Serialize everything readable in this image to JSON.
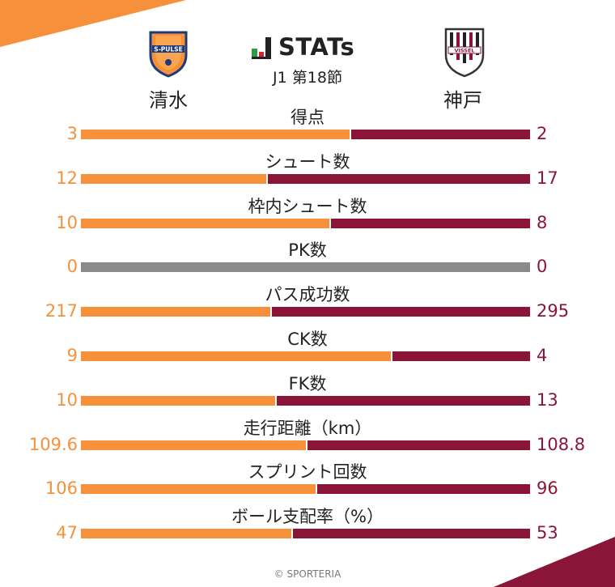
{
  "header": {
    "brand": "STATs",
    "round": "J1 第18節",
    "home_team": "清水",
    "away_team": "神戸",
    "home_crest_text": "S-PULSE",
    "away_crest_text": "VISSEL"
  },
  "colors": {
    "home": "#f7903a",
    "away": "#8b1538",
    "neutral": "#8a8a8a"
  },
  "chart_data": {
    "type": "bar",
    "orientation": "horizontal-stacked-ratio",
    "categories": [
      "得点",
      "シュート数",
      "枠内シュート数",
      "PK数",
      "パス成功数",
      "CK数",
      "FK数",
      "走行距離（km）",
      "スプリント回数",
      "ボール支配率（%）"
    ],
    "series": [
      {
        "name": "清水",
        "values": [
          3,
          12,
          10,
          0,
          217,
          9,
          10,
          109.6,
          106,
          47
        ]
      },
      {
        "name": "神戸",
        "values": [
          2,
          17,
          8,
          0,
          295,
          4,
          13,
          108.8,
          96,
          53
        ]
      }
    ],
    "home_display": [
      "3",
      "12",
      "10",
      "0",
      "217",
      "9",
      "10",
      "109.6",
      "106",
      "47"
    ],
    "away_display": [
      "2",
      "17",
      "8",
      "0",
      "295",
      "4",
      "13",
      "108.8",
      "96",
      "53"
    ]
  },
  "footer": {
    "copyright": "© SPORTERIA"
  }
}
